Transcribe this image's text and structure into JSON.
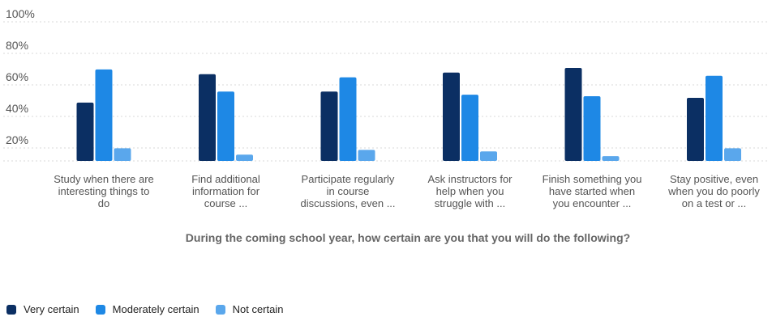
{
  "chart_data": {
    "type": "bar",
    "title": "",
    "xlabel": "During the coming school year, how certain are you that you will do the following?",
    "ylabel": "",
    "ylim": [
      0,
      100
    ],
    "yticks": [
      "100%",
      "80%",
      "60%",
      "40%",
      "20%"
    ],
    "ytick_values": [
      100,
      80,
      60,
      40,
      20
    ],
    "categories": [
      [
        "Study when there are",
        "interesting things to",
        "do"
      ],
      [
        "Find additional",
        "information for",
        "course ..."
      ],
      [
        "Participate regularly",
        "in course",
        "discussions, even ..."
      ],
      [
        "Ask instructors for",
        "help when you",
        "struggle with ..."
      ],
      [
        "Finish something you",
        "have started when",
        "you encounter ..."
      ],
      [
        "Stay positive, even",
        "when you do poorly",
        "on a test or ..."
      ]
    ],
    "series": [
      {
        "name": "Very certain",
        "color": "#0b2f63",
        "values": [
          37,
          55,
          44,
          56,
          59,
          40
        ]
      },
      {
        "name": "Moderately certain",
        "color": "#1e88e5",
        "values": [
          58,
          44,
          53,
          42,
          41,
          54
        ]
      },
      {
        "name": "Not certain",
        "color": "#5aa7ec",
        "values": [
          8,
          4,
          7,
          6,
          3,
          8
        ]
      }
    ],
    "grid": true,
    "legend_position": "bottom-left"
  }
}
